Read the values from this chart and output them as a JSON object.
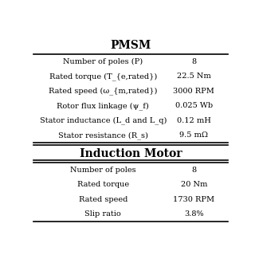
{
  "title_pmsm": "PMSM",
  "title_im": "Induction Motor",
  "pmsm_rows": [
    [
      "Number of poles (P)",
      "8"
    ],
    [
      "Rated torque (T_{e,rated})",
      "22.5 Nm"
    ],
    [
      "Rated speed (ω_{m,rated})",
      "3000 RPM"
    ],
    [
      "Rotor flux linkage (ψ_f)",
      "0.025 Wb"
    ],
    [
      "Stator inductance (L_d and L_q)",
      "0.12 mH"
    ],
    [
      "Stator resistance (R_s)",
      "9.5 mΩ"
    ]
  ],
  "im_rows": [
    [
      "Number of poles",
      "8"
    ],
    [
      "Rated torque",
      "20 Nm"
    ],
    [
      "Rated speed",
      "1730 RPM"
    ],
    [
      "Slip ratio",
      "3.8%"
    ]
  ],
  "bg_color": "#ffffff",
  "text_color": "#000000",
  "header_color": "#000000",
  "line_color": "#000000"
}
